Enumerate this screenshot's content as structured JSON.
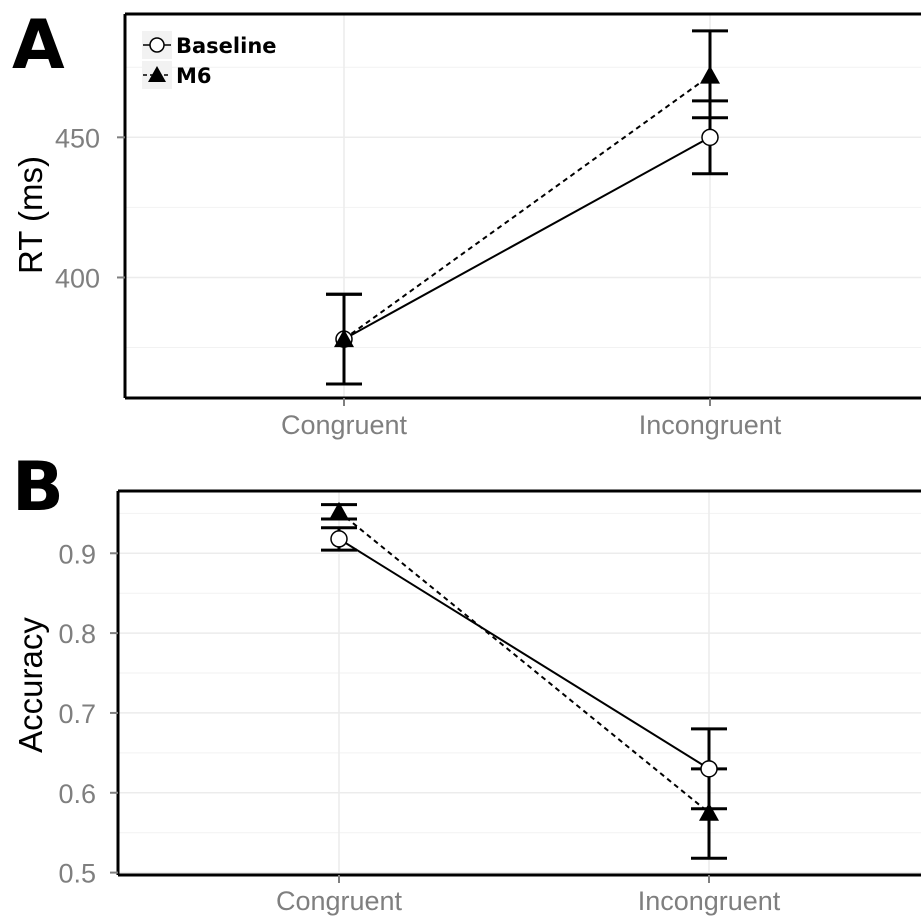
{
  "chart_data": [
    {
      "panel_label": "A",
      "type": "line",
      "categories": [
        "Congruent",
        "Incongruent"
      ],
      "xlabel": "",
      "ylabel": "RT (ms)",
      "yticks": [
        400,
        450
      ],
      "ylim": [
        357,
        494
      ],
      "grid": true,
      "legend_position": "top-left",
      "series": [
        {
          "name": "Baseline",
          "values": [
            378,
            450
          ],
          "error_low": [
            362,
            437
          ],
          "error_high": [
            394,
            463
          ],
          "marker": "open-circle",
          "line_style": "solid"
        },
        {
          "name": "M6",
          "values": [
            378,
            472
          ],
          "error_low": [
            362,
            457
          ],
          "error_high": [
            394,
            488
          ],
          "marker": "filled-triangle",
          "line_style": "dashed"
        }
      ]
    },
    {
      "panel_label": "B",
      "type": "line",
      "categories": [
        "Congruent",
        "Incongruent"
      ],
      "xlabel": "",
      "ylabel": "Accuracy",
      "yticks": [
        0.5,
        0.6,
        0.7,
        0.8,
        0.9
      ],
      "ytick_labels": [
        "0.5",
        "0.6",
        "0.7",
        "0.8",
        "0.9"
      ],
      "ylim": [
        0.497,
        0.978
      ],
      "grid": true,
      "legend_position": "none",
      "series": [
        {
          "name": "Baseline",
          "values": [
            0.918,
            0.63
          ],
          "error_low": [
            0.904,
            0.58
          ],
          "error_high": [
            0.932,
            0.68
          ],
          "marker": "open-circle",
          "line_style": "solid"
        },
        {
          "name": "M6",
          "values": [
            0.952,
            0.575
          ],
          "error_low": [
            0.943,
            0.518
          ],
          "error_high": [
            0.961,
            0.63
          ],
          "marker": "filled-triangle",
          "line_style": "dashed"
        }
      ]
    }
  ]
}
